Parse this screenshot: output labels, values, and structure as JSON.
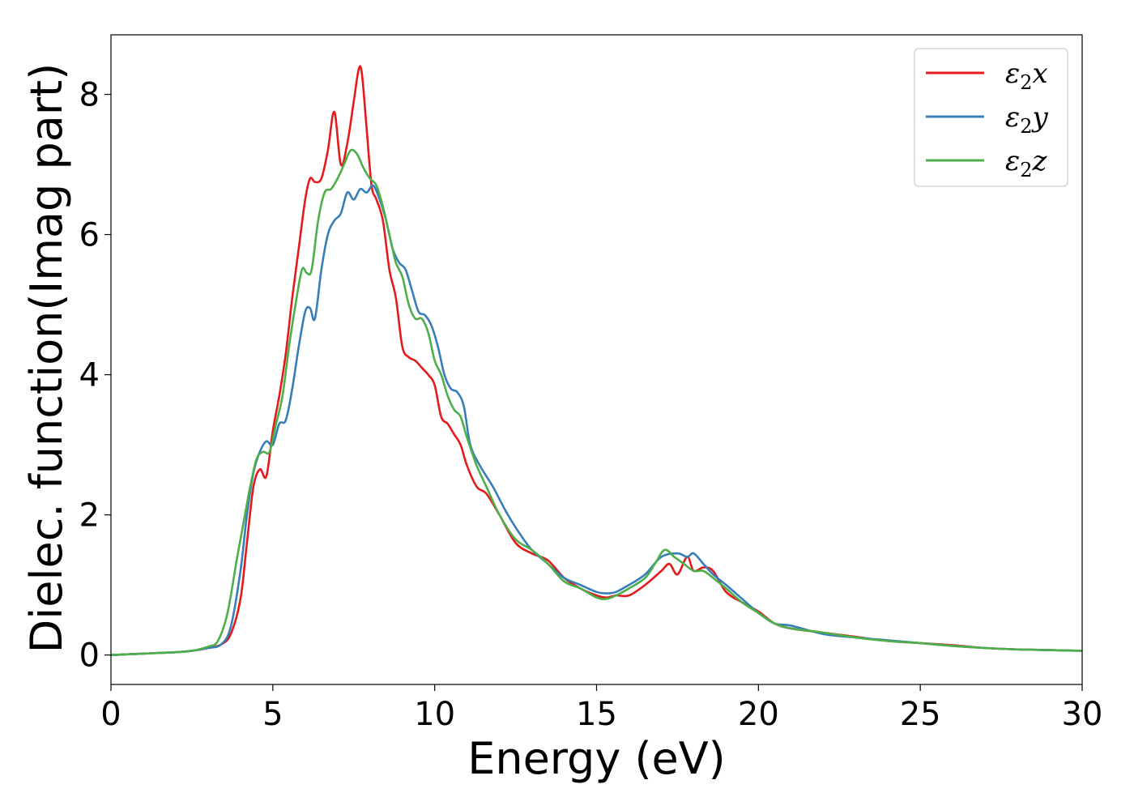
{
  "chart_data": {
    "type": "line",
    "title": "",
    "xlabel": "Energy (eV)",
    "ylabel": "Dielec. function(Imag part)",
    "xlim": [
      0,
      30
    ],
    "ylim": [
      -0.42,
      8.85
    ],
    "xticks": [
      0,
      5,
      10,
      15,
      20,
      25,
      30
    ],
    "yticks": [
      0,
      2,
      4,
      6,
      8
    ],
    "grid": false,
    "legend_position": "top-right",
    "series": [
      {
        "name": "ε2x",
        "legend_base": "ε",
        "legend_sub": "2",
        "legend_suffix": "x",
        "color": "#e41a1c",
        "x": [
          0,
          1,
          2,
          2.5,
          3,
          3.4,
          3.7,
          4.0,
          4.2,
          4.4,
          4.6,
          4.8,
          5.0,
          5.2,
          5.4,
          5.6,
          5.8,
          6.0,
          6.15,
          6.3,
          6.5,
          6.7,
          6.9,
          7.1,
          7.3,
          7.5,
          7.65,
          7.75,
          7.9,
          8.05,
          8.2,
          8.4,
          8.6,
          8.8,
          9.0,
          9.2,
          9.4,
          9.6,
          9.8,
          10.0,
          10.2,
          10.4,
          10.6,
          10.8,
          11.0,
          11.3,
          11.6,
          12.0,
          12.5,
          13.0,
          13.5,
          14.0,
          14.5,
          15.0,
          15.3,
          15.6,
          16.0,
          16.5,
          17.0,
          17.25,
          17.5,
          17.8,
          18.0,
          18.3,
          18.6,
          19.0,
          19.5,
          20.0,
          20.5,
          21.0,
          22.0,
          23.0,
          24.0,
          25.0,
          26.0,
          27.0,
          28.0,
          29.0,
          30.0
        ],
        "y": [
          0,
          0.02,
          0.04,
          0.06,
          0.1,
          0.15,
          0.3,
          0.8,
          1.6,
          2.4,
          2.65,
          2.55,
          3.2,
          3.7,
          4.3,
          5.1,
          5.8,
          6.5,
          6.8,
          6.75,
          6.8,
          7.2,
          7.75,
          7.0,
          7.3,
          7.9,
          8.35,
          8.3,
          7.5,
          6.7,
          6.5,
          6.2,
          5.5,
          5.1,
          4.4,
          4.25,
          4.2,
          4.1,
          4.0,
          3.85,
          3.4,
          3.3,
          3.15,
          3.0,
          2.7,
          2.4,
          2.3,
          2.0,
          1.6,
          1.45,
          1.35,
          1.1,
          0.95,
          0.85,
          0.82,
          0.85,
          0.85,
          1.0,
          1.2,
          1.3,
          1.15,
          1.4,
          1.2,
          1.25,
          1.2,
          0.9,
          0.75,
          0.62,
          0.45,
          0.38,
          0.32,
          0.26,
          0.2,
          0.17,
          0.14,
          0.1,
          0.08,
          0.07,
          0.06
        ]
      },
      {
        "name": "ε2y",
        "legend_base": "ε",
        "legend_sub": "2",
        "legend_suffix": "y",
        "color": "#377eb8",
        "x": [
          0,
          1,
          2,
          2.5,
          3,
          3.4,
          3.7,
          4.0,
          4.2,
          4.4,
          4.6,
          4.8,
          5.0,
          5.2,
          5.4,
          5.6,
          5.8,
          6.0,
          6.15,
          6.3,
          6.5,
          6.7,
          6.9,
          7.1,
          7.3,
          7.5,
          7.7,
          7.9,
          8.1,
          8.3,
          8.5,
          8.7,
          8.9,
          9.1,
          9.3,
          9.5,
          9.7,
          9.9,
          10.1,
          10.3,
          10.5,
          10.7,
          10.9,
          11.1,
          11.4,
          11.8,
          12.2,
          12.6,
          13.0,
          13.5,
          14.0,
          14.5,
          15.0,
          15.3,
          15.6,
          16.0,
          16.5,
          17.0,
          17.5,
          17.8,
          18.0,
          18.3,
          18.6,
          19.0,
          19.5,
          20.0,
          20.5,
          21.0,
          22.0,
          23.0,
          24.0,
          25.0,
          26.0,
          27.0,
          28.0,
          29.0,
          30.0
        ],
        "y": [
          0,
          0.02,
          0.04,
          0.06,
          0.1,
          0.15,
          0.4,
          1.2,
          2.0,
          2.6,
          2.9,
          3.05,
          3.0,
          3.3,
          3.35,
          3.8,
          4.4,
          4.9,
          4.95,
          4.8,
          5.5,
          6.0,
          6.2,
          6.3,
          6.6,
          6.5,
          6.65,
          6.6,
          6.7,
          6.5,
          6.2,
          5.8,
          5.6,
          5.5,
          5.2,
          4.9,
          4.85,
          4.7,
          4.4,
          4.0,
          3.8,
          3.75,
          3.55,
          3.0,
          2.7,
          2.4,
          2.05,
          1.75,
          1.5,
          1.3,
          1.1,
          1.0,
          0.9,
          0.88,
          0.9,
          1.0,
          1.15,
          1.4,
          1.45,
          1.4,
          1.45,
          1.3,
          1.15,
          1.0,
          0.8,
          0.6,
          0.45,
          0.42,
          0.3,
          0.25,
          0.21,
          0.17,
          0.13,
          0.1,
          0.08,
          0.07,
          0.06
        ]
      },
      {
        "name": "ε2z",
        "legend_base": "ε",
        "legend_sub": "2",
        "legend_suffix": "z",
        "color": "#4daf4a",
        "x": [
          0,
          1,
          2,
          2.5,
          3,
          3.3,
          3.6,
          3.9,
          4.1,
          4.3,
          4.5,
          4.7,
          4.9,
          5.1,
          5.3,
          5.5,
          5.7,
          5.9,
          6.05,
          6.2,
          6.4,
          6.6,
          6.8,
          7.0,
          7.2,
          7.4,
          7.6,
          7.8,
          8.0,
          8.2,
          8.4,
          8.6,
          8.8,
          9.0,
          9.2,
          9.4,
          9.6,
          9.8,
          10.0,
          10.2,
          10.4,
          10.6,
          10.8,
          11.0,
          11.3,
          11.6,
          12.0,
          12.5,
          13.0,
          13.5,
          14.0,
          14.5,
          15.0,
          15.3,
          15.6,
          16.0,
          16.5,
          16.8,
          17.1,
          17.4,
          17.7,
          18.0,
          18.3,
          18.6,
          19.0,
          19.5,
          20.0,
          20.5,
          21.0,
          22.0,
          23.0,
          24.0,
          25.0,
          26.0,
          27.0,
          28.0,
          29.0,
          30.0
        ],
        "y": [
          0,
          0.02,
          0.04,
          0.06,
          0.12,
          0.2,
          0.6,
          1.4,
          1.9,
          2.4,
          2.8,
          2.9,
          2.9,
          3.3,
          3.7,
          4.4,
          5.0,
          5.5,
          5.45,
          5.5,
          6.2,
          6.6,
          6.65,
          6.8,
          7.0,
          7.2,
          7.15,
          6.95,
          6.8,
          6.7,
          6.4,
          6.0,
          5.6,
          5.4,
          5.0,
          4.8,
          4.8,
          4.6,
          4.2,
          4.0,
          3.7,
          3.5,
          3.4,
          3.1,
          2.7,
          2.4,
          2.0,
          1.65,
          1.5,
          1.3,
          1.05,
          0.95,
          0.82,
          0.8,
          0.85,
          0.95,
          1.1,
          1.3,
          1.5,
          1.4,
          1.3,
          1.2,
          1.2,
          1.1,
          0.95,
          0.75,
          0.6,
          0.45,
          0.38,
          0.32,
          0.25,
          0.2,
          0.17,
          0.13,
          0.1,
          0.08,
          0.07,
          0.06
        ]
      }
    ]
  }
}
